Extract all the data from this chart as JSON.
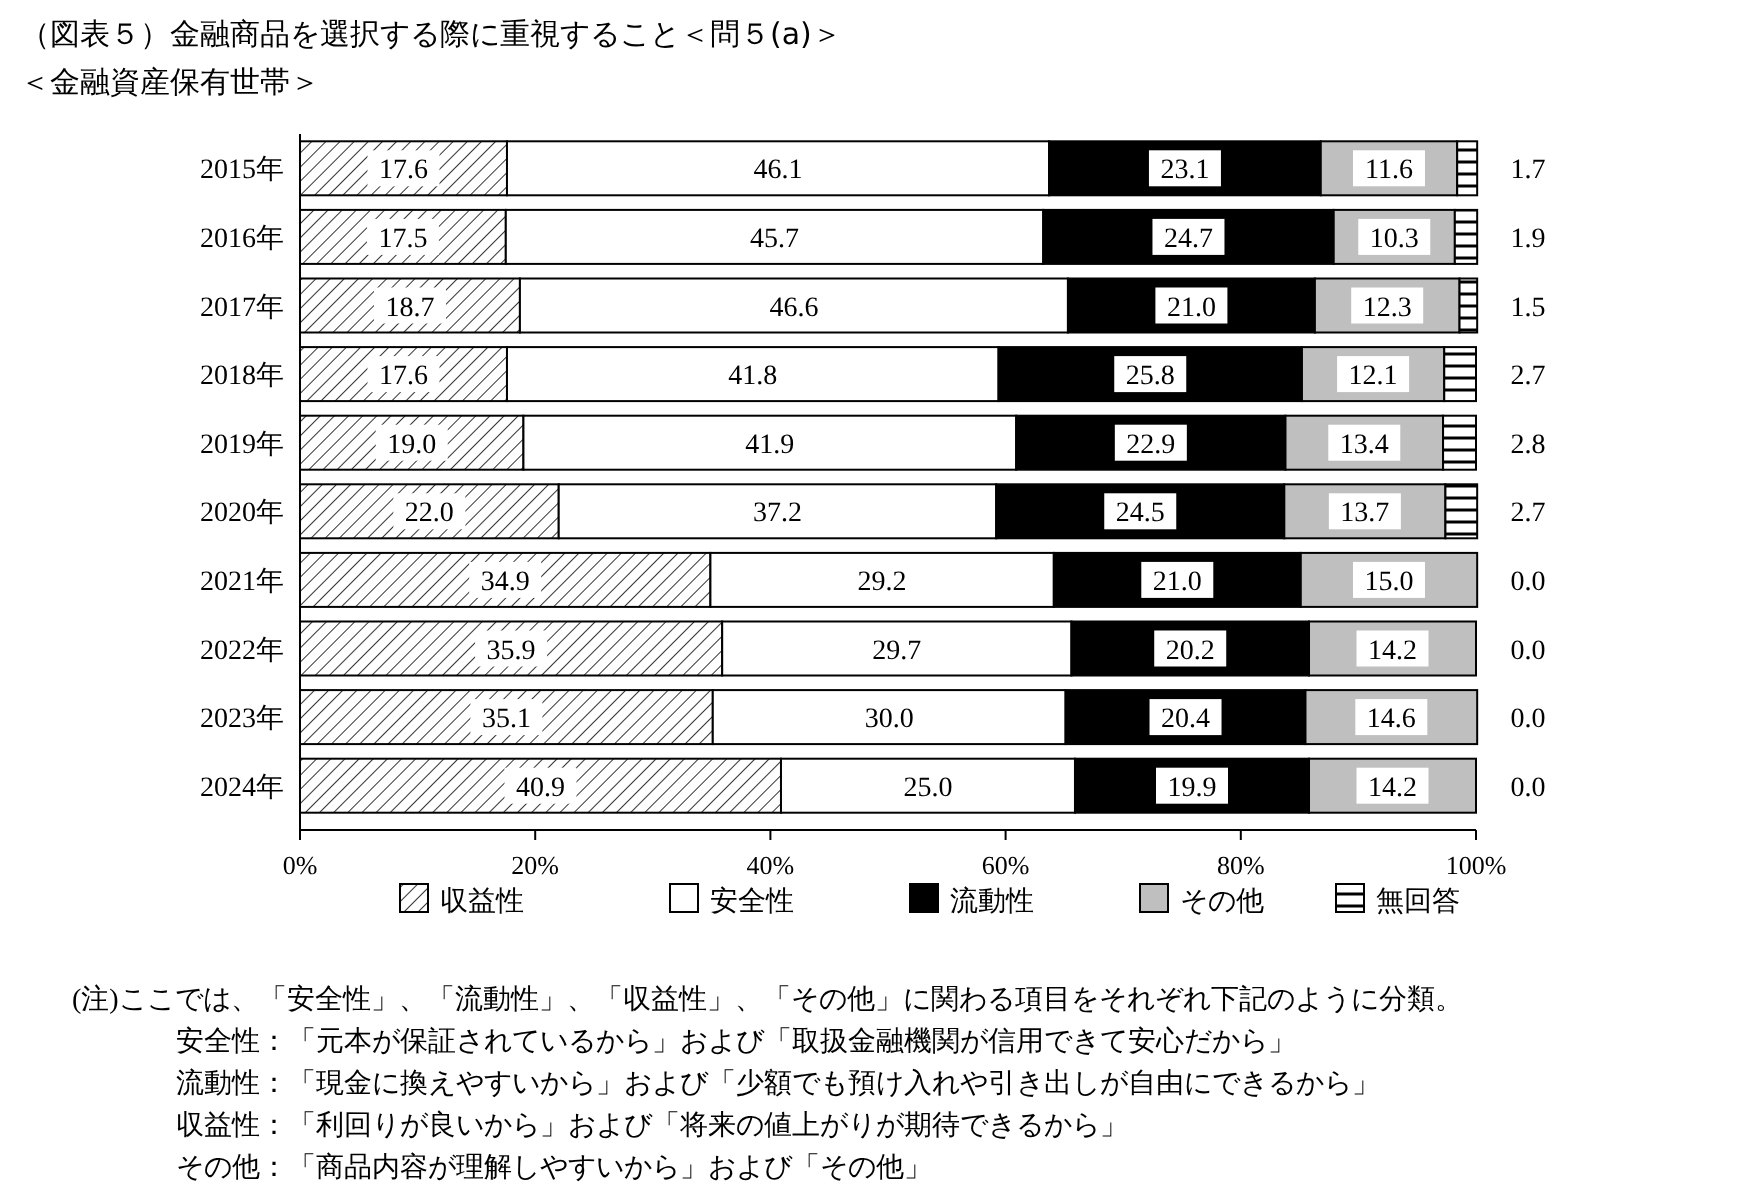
{
  "chart_data": {
    "type": "bar",
    "orientation": "horizontal",
    "stacked": true,
    "legend": "bottom",
    "grid": false,
    "title": "（図表５）金融商品を選択する際に重視すること＜問５(a)＞",
    "subtitle": "＜金融資産保有世帯＞",
    "categories": [
      "2015年",
      "2016年",
      "2017年",
      "2018年",
      "2019年",
      "2020年",
      "2021年",
      "2022年",
      "2023年",
      "2024年"
    ],
    "xlim": [
      0,
      100
    ],
    "xticks": [
      {
        "value": 0,
        "label": "0%"
      },
      {
        "value": 20,
        "label": "20%"
      },
      {
        "value": 40,
        "label": "40%"
      },
      {
        "value": 60,
        "label": "60%"
      },
      {
        "value": 80,
        "label": "80%"
      },
      {
        "value": 100,
        "label": "100%"
      }
    ],
    "series": [
      {
        "name": "収益性",
        "color": "#000000",
        "values": [
          17.6,
          17.5,
          18.7,
          17.6,
          19.0,
          22.0,
          34.9,
          35.9,
          35.1,
          40.9
        ],
        "value_labels": [
          "17.6",
          "17.5",
          "18.7",
          "17.6",
          "19.0",
          "22.0",
          "34.9",
          "35.9",
          "35.1",
          "40.9"
        ]
      },
      {
        "name": "安全性",
        "color": "#ffffff",
        "values": [
          46.1,
          45.7,
          46.6,
          41.8,
          41.9,
          37.2,
          29.2,
          29.7,
          30.0,
          25.0
        ],
        "value_labels": [
          "46.1",
          "45.7",
          "46.6",
          "41.8",
          "41.9",
          "37.2",
          "29.2",
          "29.7",
          "30.0",
          "25.0"
        ]
      },
      {
        "name": "流動性",
        "color": "#000000",
        "values": [
          23.1,
          24.7,
          21.0,
          25.8,
          22.9,
          24.5,
          21.0,
          20.2,
          20.4,
          19.9
        ],
        "value_labels": [
          "23.1",
          "24.7",
          "21.0",
          "25.8",
          "22.9",
          "24.5",
          "21.0",
          "20.2",
          "20.4",
          "19.9"
        ]
      },
      {
        "name": "その他",
        "color": "#bfbfbf",
        "values": [
          11.6,
          10.3,
          12.3,
          12.1,
          13.4,
          13.7,
          15.0,
          14.2,
          14.6,
          14.2
        ],
        "value_labels": [
          "11.6",
          "10.3",
          "12.3",
          "12.1",
          "13.4",
          "13.7",
          "15.0",
          "14.2",
          "14.6",
          "14.2"
        ]
      },
      {
        "name": "無回答",
        "color": "#000000",
        "values": [
          1.7,
          1.9,
          1.5,
          2.7,
          2.8,
          2.7,
          0.0,
          0.0,
          0.0,
          0.0
        ],
        "value_labels": [
          "1.7",
          "1.9",
          "1.5",
          "2.7",
          "2.8",
          "2.7",
          "0.0",
          "0.0",
          "0.0",
          "0.0"
        ]
      }
    ],
    "annotations": [
      "(注)ここでは、「安全性」、「流動性」、「収益性」、「その他」に関わる項目をそれぞれ下記のように分類。",
      "安全性：「元本が保証されているから」および「取扱金融機関が信用できて安心だから」",
      "流動性：「現金に換えやすいから」および「少額でも預け入れや引き出しが自由にできるから」",
      "収益性：「利回りが良いから」および「将来の値上がりが期待できるから」",
      "その他：「商品内容が理解しやすいから」および「その他」"
    ]
  }
}
